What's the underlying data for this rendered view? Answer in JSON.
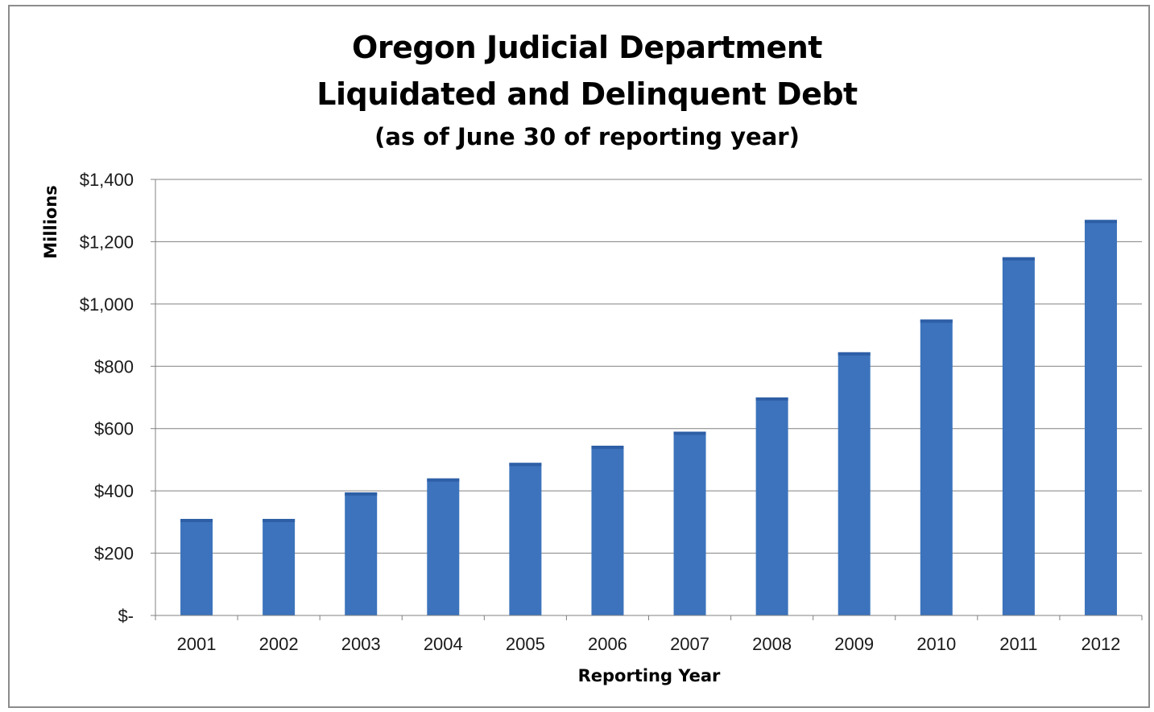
{
  "chart_data": {
    "type": "bar",
    "title": "Oregon Judicial Department",
    "title_line2": "Liquidated and Delinquent Debt",
    "subtitle": "(as of June 30 of reporting year)",
    "xlabel": "Reporting Year",
    "ylabel": "Millions",
    "categories": [
      "2001",
      "2002",
      "2003",
      "2004",
      "2005",
      "2006",
      "2007",
      "2008",
      "2009",
      "2010",
      "2011",
      "2012"
    ],
    "series": [
      {
        "values": [
          310,
          310,
          395,
          440,
          490,
          545,
          590,
          700,
          845,
          950,
          1150,
          1270
        ],
        "color": "#3c73bc"
      }
    ],
    "ylim": [
      0,
      1400
    ],
    "yticks": [
      0,
      200,
      400,
      600,
      800,
      1000,
      1200,
      1400
    ],
    "ytick_labels": [
      "$-",
      "$200",
      "$400",
      "$600",
      "$800",
      "$1,000",
      "$1,200",
      "$1,400"
    ],
    "grid": true,
    "legend": "none",
    "colors": {
      "bar": "#3c73bc",
      "bar_cap": "#2e5fa6",
      "gridline": "#808080",
      "axis": "#808080"
    }
  }
}
